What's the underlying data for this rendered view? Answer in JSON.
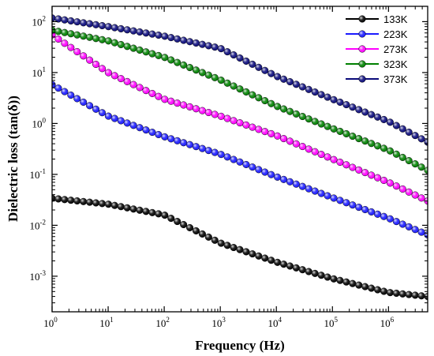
{
  "chart_data": {
    "type": "scatter",
    "xlabel": "Frequency (Hz)",
    "ylabel": "Dielectric loss (tan(δ))",
    "xscale": "log",
    "yscale": "log",
    "xlim": [
      1,
      5000000
    ],
    "ylim": [
      0.0002,
      200
    ],
    "legend_position": "top-right",
    "x_ticks": [
      {
        "base": "10",
        "exp": "0"
      },
      {
        "base": "10",
        "exp": "1"
      },
      {
        "base": "10",
        "exp": "2"
      },
      {
        "base": "10",
        "exp": "3"
      },
      {
        "base": "10",
        "exp": "4"
      },
      {
        "base": "10",
        "exp": "5"
      },
      {
        "base": "10",
        "exp": "6"
      }
    ],
    "y_ticks": [
      {
        "base": "10",
        "exp": "-3"
      },
      {
        "base": "10",
        "exp": "-2"
      },
      {
        "base": "10",
        "exp": "-1"
      },
      {
        "base": "10",
        "exp": "0"
      },
      {
        "base": "10",
        "exp": "1"
      },
      {
        "base": "10",
        "exp": "2"
      }
    ],
    "x": [
      1,
      10,
      100,
      1000,
      10000,
      100000,
      1000000,
      5000000
    ],
    "series": [
      {
        "name": "133K",
        "color": "#000000",
        "values": [
          0.034,
          0.026,
          0.016,
          0.0045,
          0.0019,
          0.0009,
          0.00048,
          0.0004
        ]
      },
      {
        "name": "223K",
        "color": "#1a1aff",
        "values": [
          5.8,
          1.4,
          0.55,
          0.25,
          0.09,
          0.035,
          0.0138,
          0.0065
        ]
      },
      {
        "name": "273K",
        "color": "#ff00ff",
        "values": [
          55,
          10,
          3.0,
          1.4,
          0.58,
          0.2,
          0.07,
          0.03
        ]
      },
      {
        "name": "323K",
        "color": "#008000",
        "values": [
          68,
          42,
          20,
          7.2,
          2.2,
          0.8,
          0.3,
          0.12
        ]
      },
      {
        "name": "373K",
        "color": "#0a0a7a",
        "values": [
          118,
          80,
          52,
          30,
          8.5,
          3.0,
          1.1,
          0.43
        ]
      }
    ]
  }
}
